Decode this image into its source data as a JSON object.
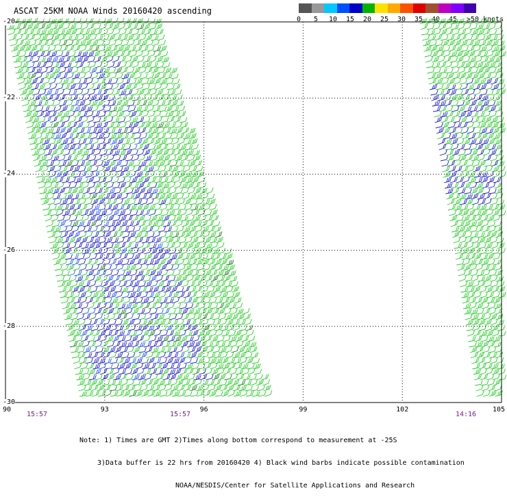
{
  "title": "ASCAT 25KM NOAA Winds 20160420 ascending",
  "legend": {
    "colors": [
      "#555555",
      "#999999",
      "#00c8ff",
      "#0050ff",
      "#0000c8",
      "#00b400",
      "#ffe000",
      "#ffaa00",
      "#ff5000",
      "#e00000",
      "#a05030",
      "#c000c0",
      "#8000ff",
      "#4000b0"
    ],
    "labels": [
      "0",
      "5",
      "10",
      "15",
      "20",
      "25",
      "30",
      "35",
      "40",
      "45",
      ">50 knots"
    ]
  },
  "axes": {
    "lat_labels": [
      "-20",
      "-22",
      "-24",
      "-26",
      "-28",
      "-30"
    ],
    "lon_labels": [
      "90",
      "93",
      "96",
      "99",
      "102",
      "105"
    ]
  },
  "pass_times": [
    "15:57",
    "15:57",
    "14:16"
  ],
  "notes": {
    "line1": "Note: 1) Times are GMT 2)Times along bottom correspond to measurement at -25S",
    "line2": "3)Data buffer is 22 hrs from 20160420 4) Black wind barbs indicate possible contamination",
    "line3": "NOAA/NESDIS/Center for Satellite Applications and Research"
  }
}
